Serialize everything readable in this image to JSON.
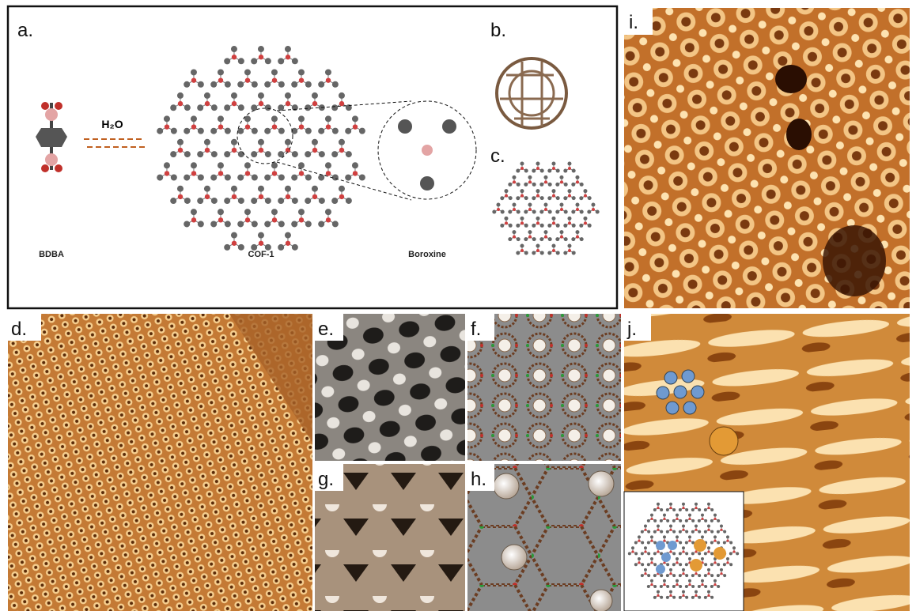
{
  "panels": {
    "a": {
      "label": "a.",
      "reagent": "H₂O",
      "molecule": "BDBA",
      "framework": "COF-1",
      "detail": "Boroxine"
    },
    "b": {
      "label": "b."
    },
    "c": {
      "label": "c."
    },
    "d": {
      "label": "d."
    },
    "e": {
      "label": "e."
    },
    "f": {
      "label": "f."
    },
    "g": {
      "label": "g."
    },
    "h": {
      "label": "h."
    },
    "i": {
      "label": "i."
    },
    "j": {
      "label": "j."
    }
  }
}
